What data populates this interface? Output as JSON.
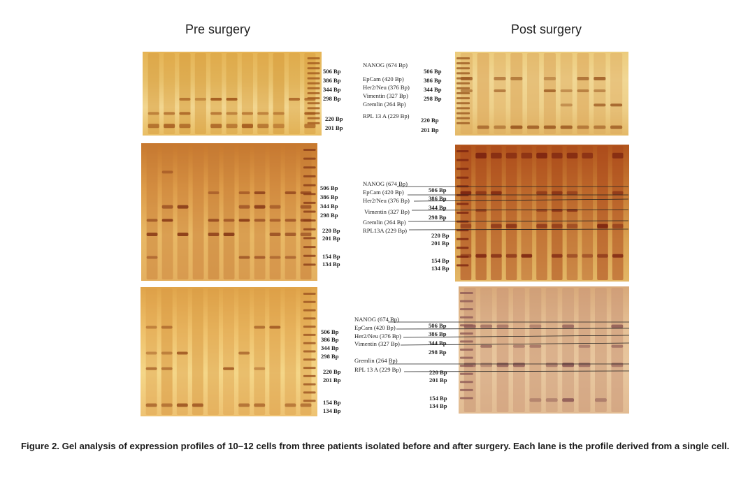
{
  "titles": {
    "pre": "Pre surgery",
    "post": "Post surgery"
  },
  "figure1": {
    "pre_bp": [
      "506 Bp",
      "386 Bp",
      "344 Bp",
      "298 Bp",
      "220 Bp",
      "201 Bp"
    ],
    "genes": [
      "NANOG (674 Bp)",
      "EpCam (420 Bp)",
      "Her2/Neu (376 Bp)",
      "Vimentin (327 Bp)",
      "Gremlin (264 Bp)",
      "RPL 13 A (229 Bp)"
    ],
    "post_bp": [
      "506 Bp",
      "386 Bp",
      "344 Bp",
      "298 Bp",
      "220 Bp",
      "201 Bp"
    ]
  },
  "figure2": {
    "pre_bp": [
      "506 Bp",
      "386 Bp",
      "344 Bp",
      "298 Bp",
      "220 Bp",
      "201 Bp",
      "154 Bp",
      "134 Bp"
    ],
    "genes": [
      "NANOG (674 Bp)",
      "EpCam (420 Bp)",
      "Her2/Neu (376 Bp)",
      "Vimentin (327 Bp)",
      "Gremlin (264 Bp)",
      "RPL13A (229 Bp)"
    ],
    "post_bp": [
      "506 Bp",
      "386 Bp",
      "344 Bp",
      "298 Bp",
      "220 Bp",
      "201 Bp",
      "154 Bp",
      "134 Bp"
    ]
  },
  "figure3": {
    "pre_bp": [
      "506 Bp",
      "386 Bp",
      "344 Bp",
      "298 Bp",
      "220 Bp",
      "201 Bp",
      "154 Bp",
      "134 Bp"
    ],
    "genes": [
      "NANOG (674 Bp)",
      "EpCam (420 Bp)",
      "Her2/Neu (376 Bp)",
      "Vimentin (327 Bp)",
      "Gremlin (264 Bp)",
      "RPL 13 A (229 Bp)"
    ],
    "post_bp": [
      "506 Bp",
      "386 Bp",
      "344 Bp",
      "298 Bp",
      "220 Bp",
      "201 Bp",
      "154 Bp",
      "134 Bp"
    ]
  },
  "caption": "Figure 2. Gel analysis of expression profiles of 10–12 cells from three patients isolated before and after surgery. Each lane is the profile derived from a single cell."
}
